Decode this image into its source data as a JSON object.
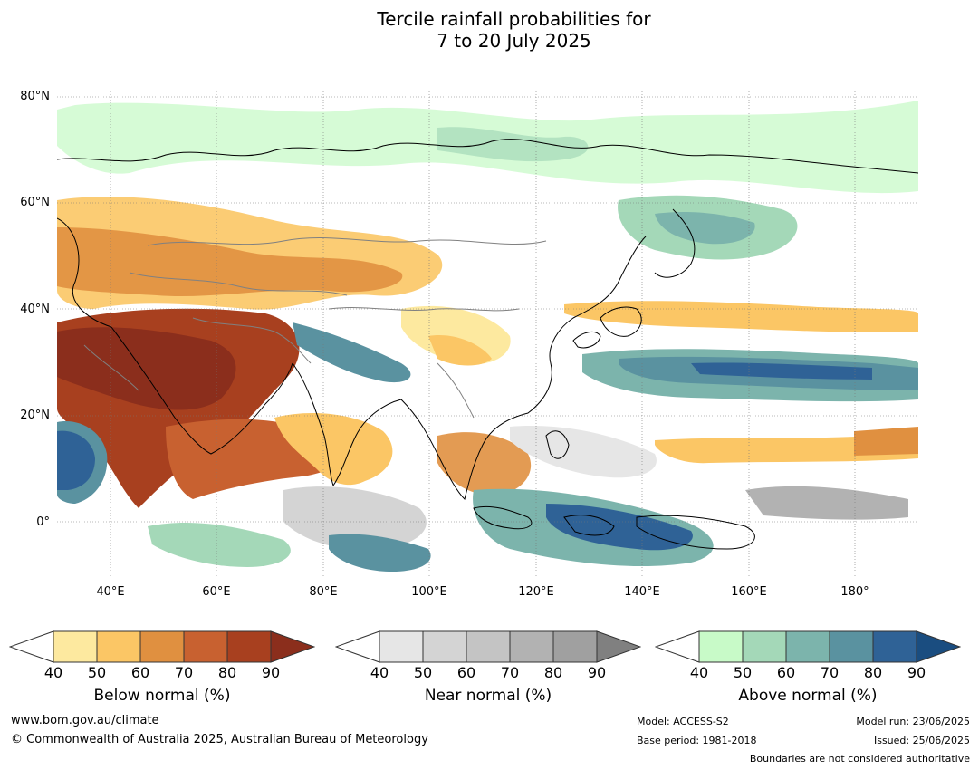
{
  "title": {
    "line1": "Tercile rainfall probabilities for",
    "line2": "7 to 20 July 2025"
  },
  "axes": {
    "lat_labels": [
      "80°N",
      "60°N",
      "40°N",
      "20°N",
      "0°"
    ],
    "lon_labels": [
      "40°E",
      "60°E",
      "80°E",
      "100°E",
      "120°E",
      "140°E",
      "160°E",
      "180°"
    ]
  },
  "colorbars": [
    {
      "name": "Below normal (%)",
      "ticks": [
        "40",
        "50",
        "60",
        "70",
        "80",
        "90"
      ],
      "colors": [
        "#ffffff",
        "#fde99f",
        "#fbc665",
        "#e09040",
        "#c86130",
        "#a8401f",
        "#8b2e1c"
      ]
    },
    {
      "name": "Near normal (%)",
      "ticks": [
        "40",
        "50",
        "60",
        "70",
        "80",
        "90"
      ],
      "colors": [
        "#ffffff",
        "#e6e6e6",
        "#d4d4d4",
        "#c4c4c4",
        "#b2b2b2",
        "#a0a0a0",
        "#808080"
      ]
    },
    {
      "name": "Above normal (%)",
      "ticks": [
        "40",
        "50",
        "60",
        "70",
        "80",
        "90"
      ],
      "colors": [
        "#ffffff",
        "#c8fac8",
        "#a4d8b8",
        "#7cb4ac",
        "#5a92a0",
        "#2f6296",
        "#1a4d80"
      ]
    }
  ],
  "footer": {
    "website": "www.bom.gov.au/climate",
    "copyright": "© Commonwealth of Australia 2025, Australian Bureau of Meteorology",
    "model": "Model: ACCESS-S2",
    "base_period": "Base period: 1981-2018",
    "model_run": "Model run: 23/06/2025",
    "issued": "Issued: 25/06/2025",
    "disclaimer": "Boundaries are not considered authoritative"
  }
}
